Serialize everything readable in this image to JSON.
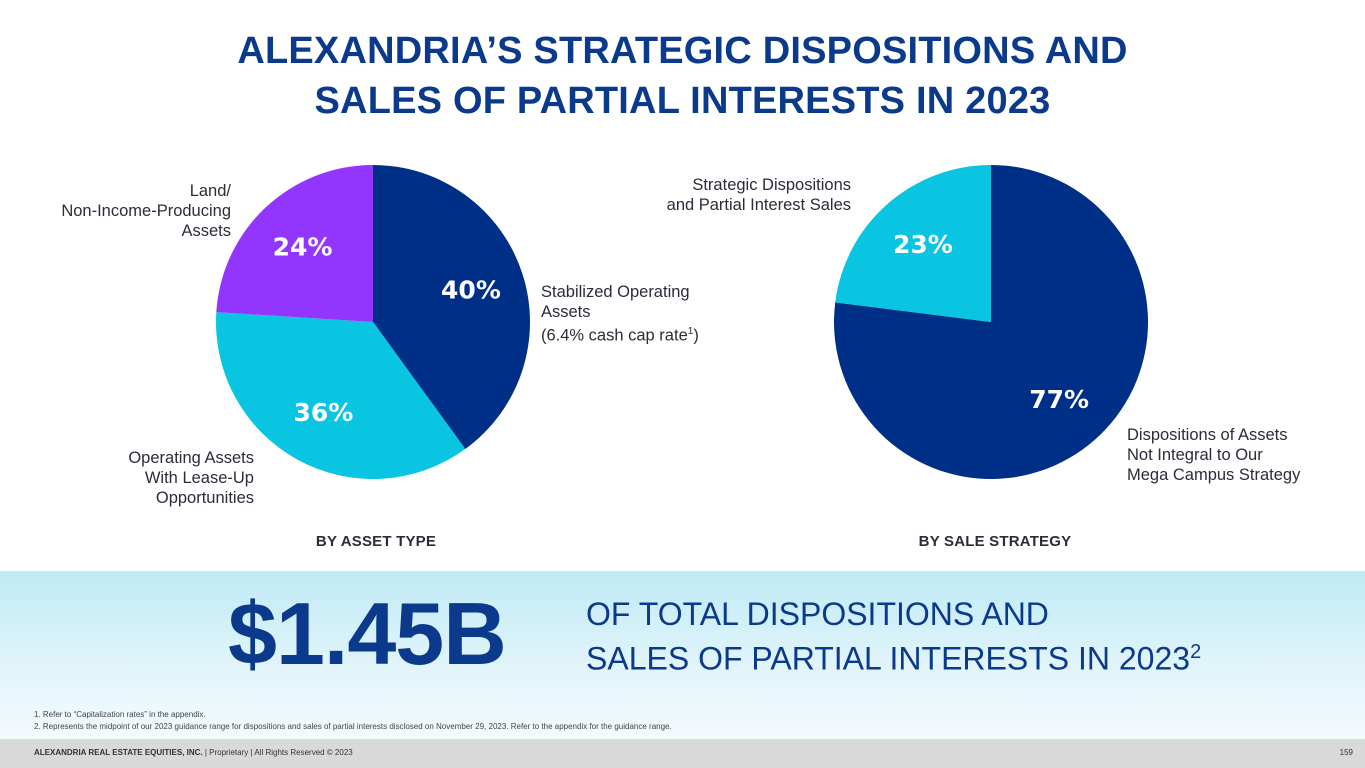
{
  "title": {
    "line1": "ALEXANDRIA’S STRATEGIC DISPOSITIONS AND",
    "line2": "SALES OF PARTIAL INTERESTS IN 2023"
  },
  "chart_data": [
    {
      "type": "pie",
      "title": "BY ASSET TYPE",
      "slices": [
        {
          "label": "Stabilized Operating\nAssets\n(6.4% cash cap rate",
          "superscript": "1",
          "suffix": ")",
          "value": 40,
          "display": "40%",
          "color": "#002f87"
        },
        {
          "label": "Operating Assets\nWith Lease-Up\nOpportunities",
          "value": 36,
          "display": "36%",
          "color": "#0ac5e2"
        },
        {
          "label": "Land/\nNon-Income-Producing\nAssets",
          "value": 24,
          "display": "24%",
          "color": "#9336fd"
        }
      ]
    },
    {
      "type": "pie",
      "title": "BY SALE STRATEGY",
      "slices": [
        {
          "label": "Dispositions of Assets\nNot Integral to Our\nMega Campus Strategy",
          "value": 77,
          "display": "77%",
          "color": "#002f87"
        },
        {
          "label": "Strategic Dispositions\nand Partial Interest Sales",
          "value": 23,
          "display": "23%",
          "color": "#0ac5e2"
        }
      ]
    }
  ],
  "highlight": {
    "amount": "$1.45B",
    "line1": "OF TOTAL DISPOSITIONS AND",
    "line2": "SALES OF PARTIAL INTERESTS IN 2023",
    "superscript": "2"
  },
  "footnotes": [
    "1.   Refer to “Capitalization rates” in the appendix.",
    "2.   Represents the midpoint of our 2023 guidance range for dispositions and sales of partial interests disclosed on November 29, 2023. Refer to the appendix for the guidance range."
  ],
  "footer": {
    "company": "ALEXANDRIA REAL ESTATE EQUITIES, INC.",
    "rest": " | Proprietary | All Rights Reserved © 2023",
    "page": "159"
  }
}
